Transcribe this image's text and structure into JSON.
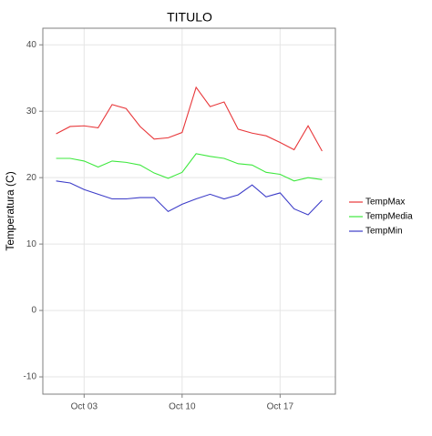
{
  "chart_data": {
    "type": "line",
    "title": "TITULO",
    "y_label": "Temperatura (C)",
    "x": [
      "Oct 01",
      "Oct 02",
      "Oct 03",
      "Oct 04",
      "Oct 05",
      "Oct 06",
      "Oct 07",
      "Oct 08",
      "Oct 09",
      "Oct 10",
      "Oct 11",
      "Oct 12",
      "Oct 13",
      "Oct 14",
      "Oct 15",
      "Oct 16",
      "Oct 17",
      "Oct 18",
      "Oct 19",
      "Oct 20"
    ],
    "xticks": [
      "Oct 03",
      "Oct 10",
      "Oct 17"
    ],
    "ylim": [
      -12.6,
      42.5
    ],
    "yticks": [
      -10,
      0,
      10,
      20,
      30,
      40
    ],
    "grid": true,
    "legend": "right",
    "series": [
      {
        "name": "TempMax",
        "color": "#e8373a",
        "values": [
          26.6,
          27.7,
          27.8,
          27.5,
          31.0,
          30.4,
          27.7,
          25.8,
          26.0,
          26.8,
          33.6,
          30.7,
          31.4,
          27.3,
          26.7,
          26.3,
          25.3,
          24.2,
          27.8,
          24.0
        ]
      },
      {
        "name": "TempMedia",
        "color": "#3ee83e",
        "values": [
          22.9,
          22.9,
          22.5,
          21.6,
          22.5,
          22.3,
          21.9,
          20.7,
          19.9,
          20.8,
          23.6,
          23.2,
          22.9,
          22.1,
          21.9,
          20.8,
          20.5,
          19.5,
          20.0,
          19.7
        ]
      },
      {
        "name": "TempMin",
        "color": "#3c3cc8",
        "values": [
          19.5,
          19.2,
          18.2,
          17.5,
          16.8,
          16.8,
          17.0,
          17.0,
          14.9,
          16.0,
          16.8,
          17.5,
          16.8,
          17.4,
          18.9,
          17.1,
          17.7,
          15.3,
          14.4,
          16.6
        ]
      }
    ]
  }
}
